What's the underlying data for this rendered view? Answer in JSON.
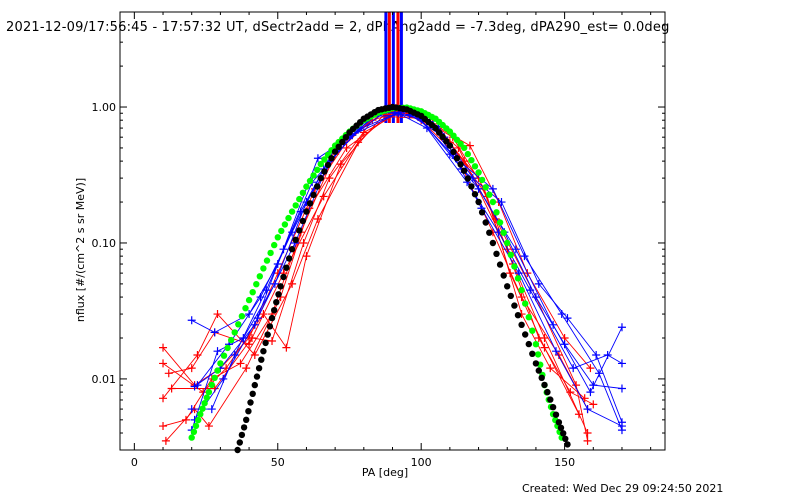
{
  "page": {
    "title": "2021-12-09/17:56:45 - 17:57:32 UT, dSectr2add = 2, dPhAng2add = -7.3deg, dPA290_est=  0.0deg",
    "footer": "Created: Wed Dec 29 09:24:50 2021"
  },
  "colors": {
    "red": "#ff0000",
    "blue": "#0000ff",
    "green": "#00ff00",
    "black": "#000000",
    "axis": "#000000"
  },
  "chart_data": {
    "type": "scatter",
    "title": "",
    "xlabel": "PA [deg]",
    "ylabel": "nflux [#/(cm^2 s sr MeV)]",
    "xlim": [
      -5,
      185
    ],
    "ylim": [
      0.003,
      5
    ],
    "yscale": "log",
    "grid": false,
    "x_ticks": [
      0,
      50,
      100,
      150
    ],
    "x_tick_labels": [
      "0",
      "50",
      "100",
      "150"
    ],
    "y_ticks": [
      0.01,
      0.1,
      1.0
    ],
    "y_tick_labels": [
      "0.01",
      "0.10",
      "1.00"
    ],
    "vertical_markers": [
      {
        "x": 87.7,
        "color": "blue"
      },
      {
        "x": 88.9,
        "color": "red"
      },
      {
        "x": 90.3,
        "color": "blue"
      },
      {
        "x": 91.9,
        "color": "red"
      },
      {
        "x": 93.1,
        "color": "blue"
      }
    ],
    "series": [
      {
        "color": "red",
        "lines": [
          [
            [
              10,
              0.017
            ],
            [
              21,
              0.009
            ],
            [
              30,
              0.012
            ],
            [
              40,
              0.02
            ],
            [
              50,
              0.06
            ],
            [
              63,
              0.25
            ],
            [
              75,
              0.6
            ],
            [
              88,
              0.95
            ],
            [
              100,
              0.8
            ],
            [
              112,
              0.45
            ],
            [
              125,
              0.12
            ],
            [
              135,
              0.04
            ],
            [
              148,
              0.015
            ],
            [
              158,
              0.006
            ]
          ],
          [
            [
              10,
              0.0045
            ],
            [
              18,
              0.005
            ],
            [
              27,
              0.01
            ],
            [
              37,
              0.013
            ],
            [
              48,
              0.03
            ],
            [
              58,
              0.12
            ],
            [
              70,
              0.45
            ],
            [
              85,
              0.9
            ],
            [
              96,
              0.95
            ],
            [
              108,
              0.6
            ],
            [
              120,
              0.3
            ],
            [
              132,
              0.07
            ],
            [
              143,
              0.02
            ],
            [
              158,
              0.004
            ]
          ],
          [
            [
              12,
              0.011
            ],
            [
              20,
              0.012
            ],
            [
              28,
              0.022
            ],
            [
              40,
              0.018
            ],
            [
              52,
              0.06
            ],
            [
              66,
              0.22
            ],
            [
              78,
              0.55
            ],
            [
              91,
              0.98
            ],
            [
              104,
              0.75
            ],
            [
              117,
              0.52
            ],
            [
              127,
              0.2
            ],
            [
              137,
              0.06
            ],
            [
              150,
              0.02
            ],
            [
              159,
              0.012
            ]
          ],
          [
            [
              10,
              0.0072
            ],
            [
              22,
              0.015
            ],
            [
              29,
              0.03
            ],
            [
              42,
              0.015
            ],
            [
              55,
              0.05
            ],
            [
              64,
              0.15
            ],
            [
              80,
              0.65
            ],
            [
              93,
              0.92
            ],
            [
              106,
              0.7
            ],
            [
              115,
              0.4
            ],
            [
              126,
              0.15
            ],
            [
              140,
              0.04
            ],
            [
              154,
              0.009
            ],
            [
              158,
              0.0035
            ]
          ],
          [
            [
              11,
              0.0035
            ],
            [
              21,
              0.006
            ],
            [
              26,
              0.0045
            ],
            [
              39,
              0.012
            ],
            [
              51,
              0.04
            ],
            [
              61,
              0.18
            ],
            [
              74,
              0.5
            ],
            [
              89,
              0.85
            ],
            [
              101,
              0.82
            ],
            [
              113,
              0.5
            ],
            [
              130,
              0.09
            ],
            [
              141,
              0.02
            ],
            [
              152,
              0.008
            ],
            [
              160,
              0.0065
            ]
          ],
          [
            [
              10,
              0.013
            ],
            [
              24,
              0.008
            ],
            [
              32,
              0.012
            ],
            [
              45,
              0.03
            ],
            [
              53,
              0.017
            ],
            [
              60,
              0.08
            ],
            [
              72,
              0.38
            ],
            [
              87,
              0.88
            ],
            [
              98,
              0.9
            ],
            [
              110,
              0.55
            ],
            [
              123,
              0.22
            ],
            [
              135,
              0.03
            ],
            [
              145,
              0.012
            ],
            [
              157,
              0.0072
            ]
          ],
          [
            [
              13,
              0.0085
            ],
            [
              28,
              0.0085
            ],
            [
              41,
              0.02
            ],
            [
              48,
              0.019
            ],
            [
              59,
              0.1
            ],
            [
              68,
              0.3
            ],
            [
              83,
              0.8
            ],
            [
              95,
              0.96
            ],
            [
              111,
              0.6
            ],
            [
              122,
              0.25
            ],
            [
              131,
              0.06
            ],
            [
              143,
              0.017
            ],
            [
              155,
              0.0055
            ]
          ]
        ]
      },
      {
        "color": "blue",
        "lines": [
          [
            [
              20,
              0.027
            ],
            [
              28,
              0.022
            ],
            [
              40,
              0.03
            ],
            [
              50,
              0.07
            ],
            [
              64,
              0.42
            ],
            [
              76,
              0.62
            ],
            [
              92,
              0.9
            ],
            [
              103,
              0.78
            ],
            [
              114,
              0.35
            ],
            [
              128,
              0.2
            ],
            [
              141,
              0.05
            ],
            [
              151,
              0.028
            ],
            [
              161,
              0.015
            ],
            [
              170,
              0.0048
            ]
          ],
          [
            [
              20,
              0.006
            ],
            [
              27,
              0.006
            ],
            [
              35,
              0.015
            ],
            [
              46,
              0.045
            ],
            [
              58,
              0.17
            ],
            [
              70,
              0.5
            ],
            [
              86,
              0.92
            ],
            [
              99,
              0.85
            ],
            [
              110,
              0.45
            ],
            [
              120,
              0.25
            ],
            [
              133,
              0.09
            ],
            [
              146,
              0.025
            ],
            [
              159,
              0.008
            ],
            [
              170,
              0.024
            ]
          ],
          [
            [
              21,
              0.0088
            ],
            [
              30,
              0.012
            ],
            [
              42,
              0.025
            ],
            [
              52,
              0.09
            ],
            [
              62,
              0.28
            ],
            [
              78,
              0.68
            ],
            [
              94,
              0.95
            ],
            [
              106,
              0.72
            ],
            [
              118,
              0.3
            ],
            [
              129,
              0.12
            ],
            [
              140,
              0.04
            ],
            [
              150,
              0.018
            ],
            [
              160,
              0.009
            ],
            [
              170,
              0.0085
            ]
          ],
          [
            [
              22,
              0.009
            ],
            [
              33,
              0.018
            ],
            [
              44,
              0.04
            ],
            [
              55,
              0.12
            ],
            [
              66,
              0.35
            ],
            [
              82,
              0.85
            ],
            [
              96,
              0.88
            ],
            [
              108,
              0.6
            ],
            [
              121,
              0.18
            ],
            [
              134,
              0.06
            ],
            [
              147,
              0.016
            ],
            [
              158,
              0.006
            ],
            [
              170,
              0.0045
            ]
          ],
          [
            [
              21,
              0.005
            ],
            [
              31,
              0.01
            ],
            [
              43,
              0.028
            ],
            [
              56,
              0.1
            ],
            [
              68,
              0.4
            ],
            [
              84,
              0.9
            ],
            [
              97,
              0.92
            ],
            [
              112,
              0.42
            ],
            [
              125,
              0.25
            ],
            [
              136,
              0.08
            ],
            [
              149,
              0.03
            ],
            [
              162,
              0.011
            ],
            [
              170,
              0.0042
            ]
          ],
          [
            [
              20,
              0.0042
            ],
            [
              29,
              0.016
            ],
            [
              38,
              0.02
            ],
            [
              49,
              0.05
            ],
            [
              60,
              0.2
            ],
            [
              73,
              0.55
            ],
            [
              89,
              0.97
            ],
            [
              102,
              0.7
            ],
            [
              116,
              0.28
            ],
            [
              127,
              0.12
            ],
            [
              138,
              0.045
            ],
            [
              153,
              0.012
            ],
            [
              165,
              0.015
            ],
            [
              170,
              0.013
            ]
          ]
        ]
      },
      {
        "color": "green",
        "name": "",
        "curve": [
          [
            20,
            0.0037
          ],
          [
            23,
            0.0055
          ],
          [
            26,
            0.008
          ],
          [
            30,
            0.013
          ],
          [
            35,
            0.022
          ],
          [
            40,
            0.038
          ],
          [
            45,
            0.065
          ],
          [
            50,
            0.11
          ],
          [
            55,
            0.17
          ],
          [
            60,
            0.26
          ],
          [
            65,
            0.38
          ],
          [
            70,
            0.52
          ],
          [
            75,
            0.66
          ],
          [
            80,
            0.8
          ],
          [
            85,
            0.91
          ],
          [
            90,
            0.98
          ],
          [
            95,
            0.99
          ],
          [
            100,
            0.93
          ],
          [
            105,
            0.82
          ],
          [
            110,
            0.66
          ],
          [
            115,
            0.5
          ],
          [
            120,
            0.33
          ],
          [
            125,
            0.2
          ],
          [
            130,
            0.1
          ],
          [
            135,
            0.045
          ],
          [
            140,
            0.018
          ],
          [
            143,
            0.009
          ],
          [
            146,
            0.0055
          ],
          [
            149,
            0.0037
          ]
        ]
      },
      {
        "color": "black",
        "name": "",
        "curve": [
          [
            36,
            0.003
          ],
          [
            39,
            0.005
          ],
          [
            42,
            0.009
          ],
          [
            45,
            0.016
          ],
          [
            48,
            0.028
          ],
          [
            51,
            0.048
          ],
          [
            55,
            0.09
          ],
          [
            60,
            0.17
          ],
          [
            65,
            0.3
          ],
          [
            70,
            0.47
          ],
          [
            75,
            0.65
          ],
          [
            80,
            0.82
          ],
          [
            85,
            0.95
          ],
          [
            90,
            1.0
          ],
          [
            95,
            0.96
          ],
          [
            100,
            0.86
          ],
          [
            105,
            0.7
          ],
          [
            110,
            0.52
          ],
          [
            115,
            0.34
          ],
          [
            120,
            0.2
          ],
          [
            125,
            0.1
          ],
          [
            130,
            0.048
          ],
          [
            135,
            0.025
          ],
          [
            140,
            0.013
          ],
          [
            144,
            0.008
          ],
          [
            148,
            0.0048
          ],
          [
            151,
            0.0033
          ]
        ]
      }
    ]
  }
}
